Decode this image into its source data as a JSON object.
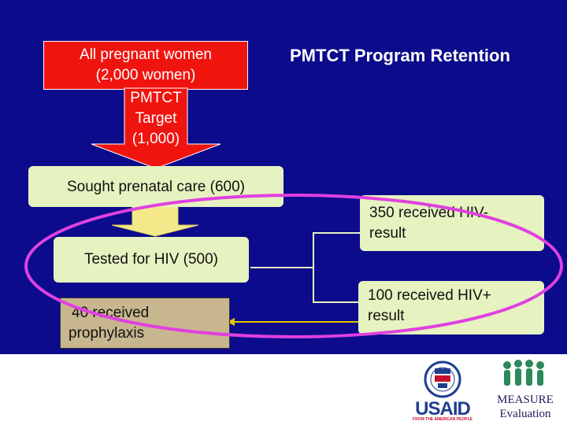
{
  "title": "PMTCT Program Retention",
  "boxes": {
    "all_women_line1": "All pregnant women",
    "all_women_line2": "(2,000 women)",
    "target_line1": "PMTCT",
    "target_line2": "Target",
    "target_line3": "(1,000)",
    "sought": "Sought prenatal care (600)",
    "tested": "Tested for HIV (500)",
    "neg_line1": "350 received HIV-",
    "neg_line2": "result",
    "pos_line1": "100 received HIV+",
    "pos_line2": "result",
    "proph_line1": "40 received",
    "proph_line2": "prophylaxis"
  },
  "logos": {
    "usaid_word": "USAID",
    "usaid_tagline": "FROM THE AMERICAN PEOPLE",
    "measure_word": "MEASURE",
    "measure_sub": "Evaluation"
  },
  "colors": {
    "background": "#0b0b8c",
    "red_box": "#f0140f",
    "green_box": "#e6f2c0",
    "tan_box": "#c8b68e",
    "highlight_ellipse": "#e040e0",
    "arrow_yellow": "#e8c000",
    "usaid_blue": "#1f3f8f",
    "usaid_red": "#c8102e",
    "measure_green": "#2a8a5a"
  }
}
